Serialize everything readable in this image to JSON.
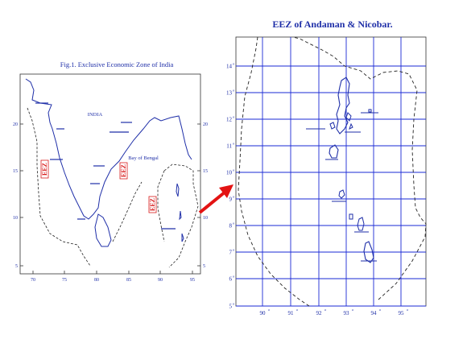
{
  "left_map": {
    "title": "Fig.1. Exclusive Economic Zone of India",
    "country_label": "INDIA",
    "bay_label": "Bay of Bengal",
    "eez_marker_text": "EEZ",
    "lon_ticks": [
      "70",
      "75",
      "80",
      "85",
      "90",
      "95"
    ],
    "lat_ticks": [
      "20",
      "15",
      "10",
      "5"
    ]
  },
  "right_map": {
    "title": "EEZ of Andaman & Nicobar.",
    "lon_ticks": [
      "90",
      "91",
      "92",
      "93",
      "94",
      "95"
    ],
    "lat_ticks": [
      "14",
      "13",
      "12",
      "11",
      "10",
      "9",
      "8",
      "7",
      "6",
      "5"
    ]
  },
  "colors": {
    "coast": "#1f2fa8",
    "grid": "#1a2ad6",
    "eez_marker": "#d81b1b",
    "arrow": "#e31313"
  }
}
